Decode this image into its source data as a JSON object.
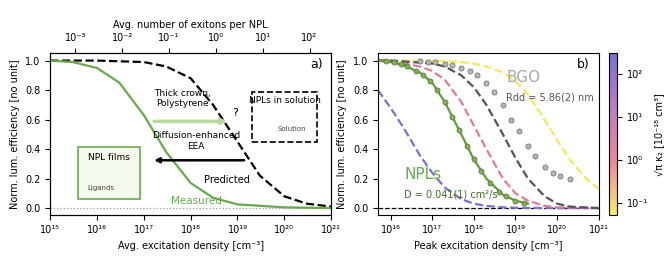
{
  "chart_data": [
    {
      "type": "line",
      "x_label": "Avg. excitation density [cm⁻³]",
      "y_label": "Norm. lum. efficiency [no unit]",
      "x2_label": "Avg. number of exitons per NPL",
      "log": "x",
      "xlim": [
        1000000000000000.0,
        1e+21
      ],
      "xticks": [
        {
          "value": 1000000000000000.0,
          "label": "10¹⁵"
        },
        {
          "value": 1e+16,
          "label": "10¹⁶"
        },
        {
          "value": 1e+17,
          "label": "10¹⁷"
        },
        {
          "value": 1e+18,
          "label": "10¹⁸"
        },
        {
          "value": 1e+19,
          "label": "10¹⁹"
        },
        {
          "value": 1e+20,
          "label": "10²⁰"
        },
        {
          "value": 1e+21,
          "label": "10²¹"
        }
      ],
      "x2lim": [
        0.00029,
        290
      ],
      "x2ticks": [
        {
          "value": 0.001,
          "label": "10⁻³"
        },
        {
          "value": 0.01,
          "label": "10⁻²"
        },
        {
          "value": 0.1,
          "label": "10⁻¹"
        },
        {
          "value": 1,
          "label": "10⁰"
        },
        {
          "value": 10,
          "label": "10¹"
        },
        {
          "value": 100,
          "label": "10²"
        }
      ],
      "ylim": [
        -0.05,
        1.05
      ],
      "yticks": [
        {
          "value": 0,
          "label": "0.0"
        },
        {
          "value": 0.2,
          "label": "0.2"
        },
        {
          "value": 0.4,
          "label": "0.4"
        },
        {
          "value": 0.6,
          "label": "0.6"
        },
        {
          "value": 0.8,
          "label": "0.8"
        },
        {
          "value": 1.0,
          "label": "1.0"
        }
      ],
      "reference_line": {
        "value": 0,
        "line_style": "dotted",
        "color": "#999999"
      },
      "series": [
        {
          "type": "line",
          "color": "#000000",
          "line_style": "dashed",
          "x": [
            1000000000000000.0,
            1e+16,
            1e+17,
            3e+17,
            1e+18,
            3e+18,
            1e+19,
            3e+19,
            1e+20,
            3e+20,
            1e+21
          ],
          "values": [
            1.0,
            1.0,
            0.99,
            0.96,
            0.88,
            0.7,
            0.45,
            0.22,
            0.08,
            0.03,
            0.01
          ]
        },
        {
          "type": "line",
          "color": "#6aa84f",
          "line_style": "solid",
          "x": [
            1000000000000000.0,
            3000000000000000.0,
            1e+16,
            3e+16,
            1e+17,
            3e+17,
            1e+18,
            3e+18,
            1e+19,
            1e+20,
            1e+21
          ],
          "values": [
            1.0,
            0.99,
            0.95,
            0.85,
            0.63,
            0.38,
            0.17,
            0.07,
            0.025,
            0.005,
            0.0
          ]
        }
      ],
      "annotations": [
        {
          "text": "a)",
          "color": "#000000"
        },
        {
          "text": "Thick crown,\nPolystyrene",
          "color": "#000000"
        },
        {
          "text": "?",
          "color": "#000000"
        },
        {
          "text": "NPLs in solution",
          "color": "#000000"
        },
        {
          "text": "Solution",
          "color": "#444444"
        },
        {
          "text": "Predicted",
          "color": "#000000"
        },
        {
          "text": "NPL films",
          "color": "#000000"
        },
        {
          "text": "Ligands",
          "color": "#444444"
        },
        {
          "text": "Diffusion-enhanced\nEEA",
          "color": "#000000"
        },
        {
          "text": "Measured",
          "color": "#6aa84f"
        }
      ]
    },
    {
      "type": "line",
      "x_label": "Peak excitation density [cm⁻³]",
      "y_label": "Norm. lum. efficiency [no unit]",
      "log": "x",
      "xlim": [
        5000000000000000.0,
        1e+21
      ],
      "xticks": [
        {
          "value": 1e+16,
          "label": "10¹⁶"
        },
        {
          "value": 1e+17,
          "label": "10¹⁷"
        },
        {
          "value": 1e+18,
          "label": "10¹⁸"
        },
        {
          "value": 1e+19,
          "label": "10¹⁹"
        },
        {
          "value": 1e+20,
          "label": "10²⁰"
        },
        {
          "value": 1e+21,
          "label": "10²¹"
        }
      ],
      "ylim": [
        -0.05,
        1.05
      ],
      "yticks": [
        {
          "value": 0,
          "label": "0.0"
        },
        {
          "value": 0.2,
          "label": "0.2"
        },
        {
          "value": 0.4,
          "label": "0.4"
        },
        {
          "value": 0.6,
          "label": "0.6"
        },
        {
          "value": 0.8,
          "label": "0.8"
        },
        {
          "value": 1.0,
          "label": "1.0"
        }
      ],
      "reference_line": {
        "value": 0,
        "line_style": "dashed",
        "color": "#000000"
      },
      "colorbar": {
        "label": "√π κ₂ [10⁻¹⁸ cm³]",
        "lim": [
          0.05,
          300
        ],
        "ticks": [
          {
            "value": 0.1,
            "label": "10⁻¹"
          },
          {
            "value": 1,
            "label": "10⁰"
          },
          {
            "value": 10,
            "label": "10¹"
          },
          {
            "value": 100,
            "label": "10²"
          }
        ]
      },
      "series": [
        {
          "type": "line",
          "color": "#f5e85a",
          "line_style": "dashed",
          "x": [
            5000000000000000.0,
            1e+16,
            1e+17,
            5e+17,
            1e+18,
            2e+18,
            5e+18,
            1e+19,
            2e+19,
            5e+19,
            1e+20,
            2e+20,
            5e+20,
            1e+21
          ],
          "values": [
            1.0,
            1.0,
            1.0,
            0.99,
            0.98,
            0.96,
            0.92,
            0.86,
            0.77,
            0.6,
            0.46,
            0.33,
            0.2,
            0.13
          ]
        },
        {
          "type": "line",
          "color": "#7b6fd0",
          "line_style": "dashed",
          "x": [
            5000000000000000.0,
            1e+16,
            2e+16,
            5e+16,
            1e+17,
            2e+17,
            5e+17,
            1e+18,
            2e+18,
            5e+18,
            1e+19,
            1e+20,
            1e+21
          ],
          "values": [
            0.8,
            0.68,
            0.55,
            0.36,
            0.24,
            0.14,
            0.06,
            0.03,
            0.015,
            0.005,
            0.002,
            0.0,
            0.0
          ]
        },
        {
          "type": "line",
          "color": "#e07a9a",
          "line_style": "dashed",
          "x": [
            5000000000000000.0,
            1e+16,
            2e+16,
            5e+16,
            1e+17,
            2e+17,
            5e+17,
            1e+18,
            2e+18,
            5e+18,
            1e+19,
            2e+19,
            5e+19,
            1e+20,
            1e+21
          ],
          "values": [
            1.0,
            0.99,
            0.98,
            0.96,
            0.93,
            0.87,
            0.72,
            0.56,
            0.4,
            0.2,
            0.1,
            0.05,
            0.015,
            0.005,
            0.0
          ]
        },
        {
          "type": "line",
          "color": "#555555",
          "line_style": "dashed",
          "x": [
            5000000000000000.0,
            1e+16,
            1e+17,
            2e+17,
            5e+17,
            1e+18,
            2e+18,
            5e+18,
            1e+19,
            2e+19,
            5e+19,
            1e+20,
            2e+20,
            1e+21
          ],
          "values": [
            1.0,
            1.0,
            0.98,
            0.96,
            0.9,
            0.82,
            0.7,
            0.5,
            0.34,
            0.2,
            0.08,
            0.03,
            0.01,
            0.0
          ]
        },
        {
          "type": "scatter",
          "color": "#b5b5b5",
          "marker": "o",
          "x": [
            5e+16,
            8e+16,
            1.2e+17,
            2e+17,
            3e+17,
            5e+17,
            8e+17,
            1.2e+18,
            2e+18,
            3e+18,
            5e+18,
            8e+18,
            1.2e+19,
            2e+19,
            3e+19,
            5e+19,
            8e+19,
            1.2e+20,
            2e+20
          ],
          "values": [
            1.0,
            0.99,
            0.99,
            0.98,
            0.97,
            0.95,
            0.93,
            0.9,
            0.85,
            0.79,
            0.7,
            0.6,
            0.52,
            0.42,
            0.35,
            0.28,
            0.24,
            0.22,
            0.2
          ]
        },
        {
          "type": "scatter",
          "color": "#7cb342",
          "marker": "o",
          "x": [
            8000000000000000.0,
            1.2e+16,
            1.8e+16,
            2.5e+16,
            4e+16,
            6e+16,
            9e+16,
            1.3e+17,
            2e+17,
            3e+17,
            4.5e+17,
            7e+17,
            1e+18,
            1.5e+18,
            2.5e+18,
            4e+18,
            6e+18,
            1e+19,
            1.6e+19
          ],
          "values": [
            1.0,
            0.99,
            0.98,
            0.96,
            0.93,
            0.9,
            0.86,
            0.8,
            0.72,
            0.62,
            0.53,
            0.42,
            0.33,
            0.25,
            0.17,
            0.11,
            0.08,
            0.05,
            0.035
          ]
        },
        {
          "type": "line",
          "color": "#5e9e3a",
          "line_style": "solid",
          "x": [
            5000000000000000.0,
            1e+16,
            2e+16,
            5e+16,
            1e+17,
            2e+17,
            5e+17,
            1e+18,
            2e+18,
            5e+18,
            1e+19,
            2e+19
          ],
          "values": [
            1.0,
            0.99,
            0.97,
            0.92,
            0.85,
            0.72,
            0.5,
            0.33,
            0.2,
            0.09,
            0.05,
            0.03
          ]
        }
      ],
      "annotations": [
        {
          "text": "b)",
          "color": "#000000"
        },
        {
          "text": "BGO",
          "color": "#a8a8a8"
        },
        {
          "text": "Rdd = 5.86(2) nm",
          "color": "#555555"
        },
        {
          "text": "NPLs",
          "color": "#6aa84f"
        },
        {
          "text": "D = 0.041(1) cm²/s",
          "color": "#3d6b26"
        }
      ]
    }
  ]
}
